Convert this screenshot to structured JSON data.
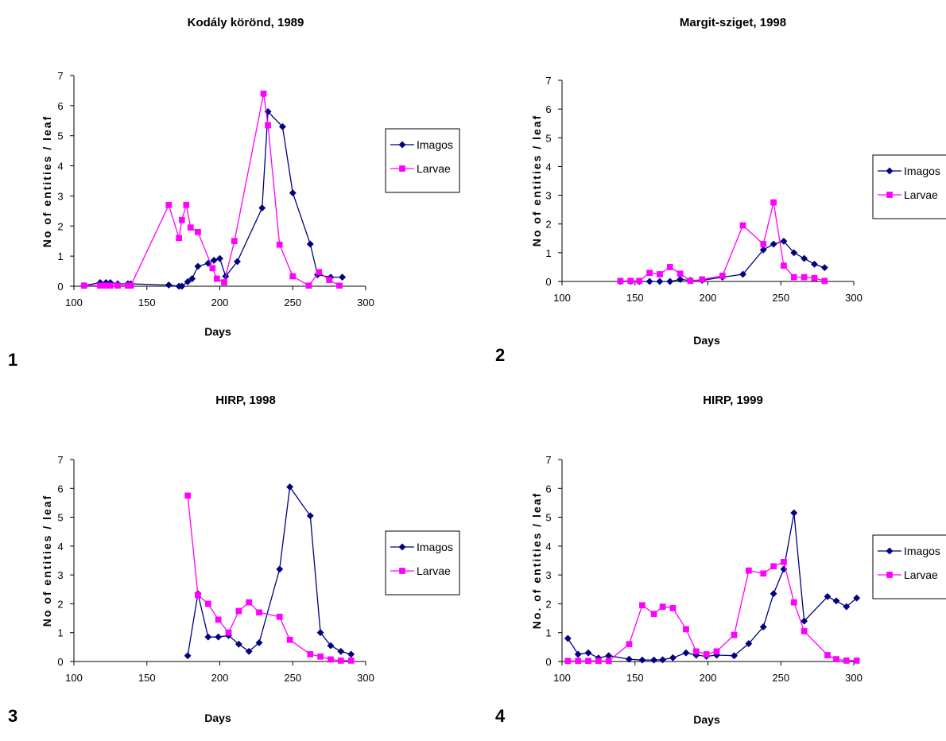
{
  "chart_data": [
    {
      "type": "line",
      "panel_label": "1",
      "title": "Kodály körönd, 1989",
      "xlabel": "Days",
      "ylabel": "No of entities / leaf",
      "xlim": [
        100,
        300
      ],
      "ylim": [
        0,
        7
      ],
      "xticks": [
        "100",
        "150",
        "200",
        "250",
        "300"
      ],
      "yticks": [
        "0",
        "1",
        "2",
        "3",
        "4",
        "5",
        "6",
        "7"
      ],
      "legend": "right",
      "series": [
        {
          "name": "Imagos",
          "color": "#000080",
          "marker": "diamond",
          "x": [
            107,
            118,
            122,
            125,
            130,
            137,
            139,
            165,
            172,
            174,
            178,
            181,
            185,
            192,
            196,
            200,
            204,
            212,
            229,
            233,
            243,
            250,
            262,
            267,
            276,
            284
          ],
          "y": [
            0.02,
            0.12,
            0.12,
            0.12,
            0.08,
            0.08,
            0.08,
            0.04,
            0.0,
            0.0,
            0.15,
            0.25,
            0.66,
            0.76,
            0.86,
            0.92,
            0.33,
            0.82,
            2.6,
            5.8,
            5.3,
            3.1,
            1.4,
            0.38,
            0.3,
            0.3
          ]
        },
        {
          "name": "Larvae",
          "color": "#FF00FF",
          "marker": "square",
          "x": [
            107,
            118,
            122,
            125,
            130,
            137,
            139,
            165,
            172,
            174,
            177,
            180,
            185,
            195,
            198,
            203,
            210,
            230,
            233,
            241,
            250,
            261,
            268,
            275,
            282
          ],
          "y": [
            0.02,
            0.02,
            0.02,
            0.02,
            0.02,
            0.02,
            0.02,
            2.7,
            1.6,
            2.2,
            2.7,
            1.95,
            1.8,
            0.6,
            0.25,
            0.13,
            1.5,
            6.4,
            5.35,
            1.38,
            0.33,
            0.02,
            0.47,
            0.21,
            0.02
          ]
        }
      ]
    },
    {
      "type": "line",
      "panel_label": "2",
      "title": "Margit-sziget, 1998",
      "xlabel": "Days",
      "ylabel": "No of entities / leaf",
      "xlim": [
        100,
        300
      ],
      "ylim": [
        0,
        7
      ],
      "xticks": [
        "100",
        "150",
        "200",
        "250",
        "300"
      ],
      "yticks": [
        "0",
        "1",
        "2",
        "3",
        "4",
        "5",
        "6",
        "7"
      ],
      "legend": "right",
      "series": [
        {
          "name": "Imagos",
          "color": "#000080",
          "marker": "diamond",
          "x": [
            140,
            147,
            153,
            160,
            167,
            174,
            181,
            188,
            196,
            210,
            224,
            238,
            245,
            252,
            259,
            266,
            273,
            280
          ],
          "y": [
            0.0,
            0.0,
            0.0,
            0.0,
            0.0,
            0.0,
            0.07,
            0.04,
            0.04,
            0.15,
            0.25,
            1.1,
            1.3,
            1.4,
            1.0,
            0.8,
            0.6,
            0.48
          ]
        },
        {
          "name": "Larvae",
          "color": "#FF00FF",
          "marker": "square",
          "x": [
            140,
            147,
            153,
            160,
            167,
            174,
            181,
            188,
            196,
            210,
            224,
            238,
            245,
            252,
            259,
            266,
            273,
            280
          ],
          "y": [
            0.02,
            0.02,
            0.02,
            0.3,
            0.25,
            0.5,
            0.27,
            0.02,
            0.07,
            0.2,
            1.95,
            1.3,
            2.75,
            0.55,
            0.15,
            0.15,
            0.12,
            0.02
          ]
        }
      ]
    },
    {
      "type": "line",
      "panel_label": "3",
      "title": "HIRP, 1998",
      "xlabel": "Days",
      "ylabel": "No of entities / leaf",
      "xlim": [
        100,
        300
      ],
      "ylim": [
        0,
        7
      ],
      "xticks": [
        "100",
        "150",
        "200",
        "250",
        "300"
      ],
      "yticks": [
        "0",
        "1",
        "2",
        "3",
        "4",
        "5",
        "6",
        "7"
      ],
      "legend": "right",
      "series": [
        {
          "name": "Imagos",
          "color": "#000080",
          "marker": "diamond",
          "x": [
            178,
            185,
            192,
            199,
            206,
            213,
            220,
            227,
            241,
            248,
            262,
            269,
            276,
            283,
            290
          ],
          "y": [
            0.2,
            2.35,
            0.85,
            0.85,
            0.9,
            0.6,
            0.35,
            0.65,
            3.2,
            6.05,
            5.05,
            1.0,
            0.55,
            0.35,
            0.25
          ]
        },
        {
          "name": "Larvae",
          "color": "#FF00FF",
          "marker": "square",
          "x": [
            178,
            185,
            192,
            199,
            206,
            213,
            220,
            227,
            241,
            248,
            262,
            269,
            276,
            283,
            290
          ],
          "y": [
            5.75,
            2.3,
            2.0,
            1.45,
            1.0,
            1.75,
            2.05,
            1.7,
            1.55,
            0.75,
            0.25,
            0.17,
            0.07,
            0.03,
            0.03
          ]
        }
      ]
    },
    {
      "type": "line",
      "panel_label": "4",
      "title": "HIRP, 1999",
      "xlabel": "Days",
      "ylabel": "No. of entities / leaf",
      "xlim": [
        100,
        300
      ],
      "ylim": [
        0,
        7
      ],
      "xticks": [
        "100",
        "150",
        "200",
        "250",
        "300"
      ],
      "yticks": [
        "0",
        "1",
        "2",
        "3",
        "4",
        "5",
        "6",
        "7"
      ],
      "legend": "right",
      "series": [
        {
          "name": "Imagos",
          "color": "#000080",
          "marker": "diamond",
          "x": [
            104,
            111,
            118,
            125,
            132,
            146,
            155,
            163,
            169,
            176,
            185,
            192,
            199,
            206,
            218,
            228,
            238,
            245,
            252,
            259,
            266,
            282,
            288,
            295,
            302
          ],
          "y": [
            0.8,
            0.25,
            0.3,
            0.12,
            0.2,
            0.08,
            0.05,
            0.05,
            0.06,
            0.13,
            0.3,
            0.22,
            0.18,
            0.22,
            0.2,
            0.62,
            1.2,
            2.35,
            3.2,
            5.15,
            1.4,
            2.25,
            2.1,
            1.9,
            2.2
          ]
        },
        {
          "name": "Larvae",
          "color": "#FF00FF",
          "marker": "square",
          "x": [
            104,
            111,
            118,
            125,
            132,
            146,
            155,
            163,
            169,
            176,
            185,
            192,
            199,
            206,
            218,
            228,
            238,
            245,
            252,
            259,
            266,
            282,
            288,
            295,
            302
          ],
          "y": [
            0.02,
            0.02,
            0.02,
            0.02,
            0.02,
            0.6,
            1.95,
            1.65,
            1.9,
            1.85,
            1.12,
            0.35,
            0.25,
            0.35,
            0.92,
            3.15,
            3.05,
            3.3,
            3.45,
            2.05,
            1.05,
            0.22,
            0.08,
            0.03,
            0.03
          ]
        }
      ]
    }
  ]
}
